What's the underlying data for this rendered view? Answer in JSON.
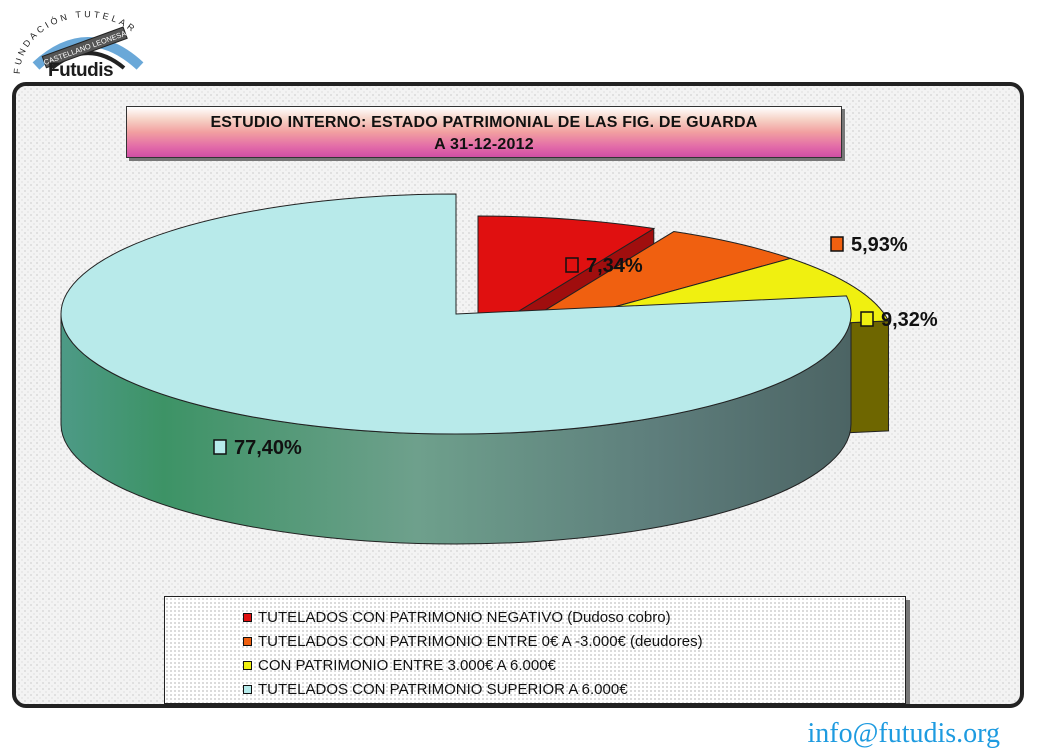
{
  "logo": {
    "arc_text": "FUNDACIÓN TUTELAR",
    "ribbon_text": "CASTELLANO LEONESA",
    "name": "Futudis"
  },
  "chart_data": {
    "type": "pie",
    "title": "ESTUDIO INTERNO: ESTADO PATRIMONIAL DE LAS FIG. DE GUARDA",
    "subtitle": "A 31-12-2012",
    "labels": [
      "TUTELADOS CON  PATRIMONIO NEGATIVO (Dudoso cobro)",
      "TUTELADOS CON PATRIMONIO ENTRE 0€ A -3.000€ (deudores)",
      "CON PATRIMONIO ENTRE 3.000€ A 6.000€",
      "TUTELADOS CON PATRIMONIO SUPERIOR A 6.000€"
    ],
    "values": [
      7.34,
      5.93,
      9.32,
      77.4
    ],
    "data_labels": [
      "7,34%",
      "5,93%",
      "9,32%",
      "77,40%"
    ],
    "colors": [
      "#e01010",
      "#f06010",
      "#f0f010",
      "#b6ebeb"
    ],
    "legend_position": "bottom",
    "style": "3d-exploded"
  },
  "footer": {
    "email": "info@futudis.org"
  }
}
